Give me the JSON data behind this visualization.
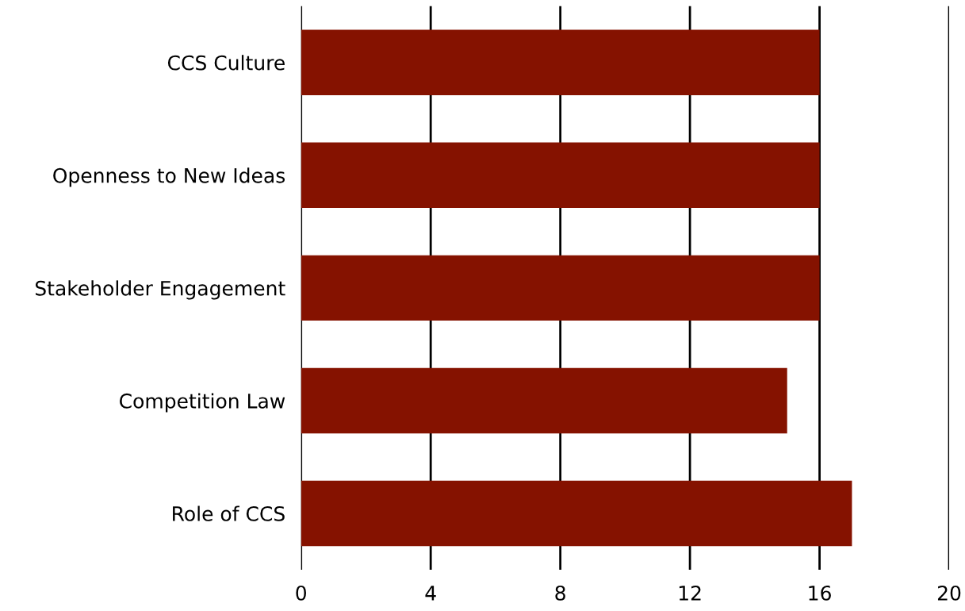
{
  "chart_data": {
    "type": "bar",
    "orientation": "horizontal",
    "categories": [
      "CCS Culture",
      "Openness to New Ideas",
      "Stakeholder Engagement",
      "Competition Law",
      "Role of CCS"
    ],
    "values": [
      16,
      16,
      16,
      15,
      17
    ],
    "color": "#851200",
    "xlim": [
      0,
      20
    ],
    "xticks": [
      0,
      4,
      8,
      12,
      16,
      20
    ],
    "grid": "x"
  }
}
